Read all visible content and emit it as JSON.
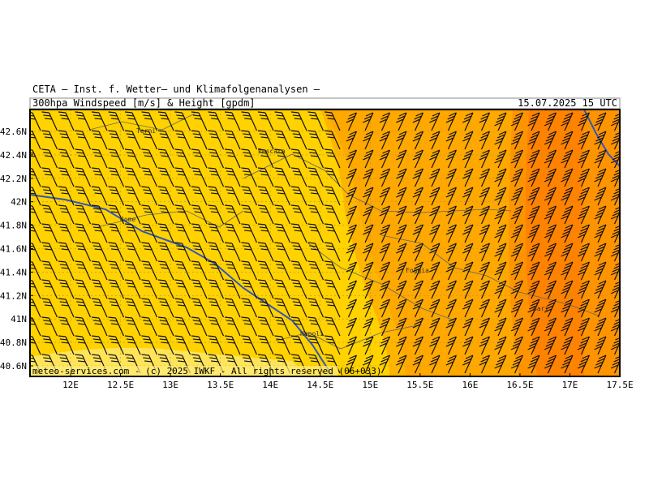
{
  "header": {
    "institute": "CETA — Inst. f. Wetter— und Klimafolgenanalysen —",
    "product": "300hpa Windspeed [m/s] & Height [gpdm]",
    "valid_time": "15.07.2025 15 UTC"
  },
  "map": {
    "lat_labels": [
      "42.6N",
      "42.4N",
      "42.2N",
      "42N",
      "41.8N",
      "41.6N",
      "41.4N",
      "41.2N",
      "41N",
      "40.8N",
      "40.6N"
    ],
    "lon_labels": [
      "12E",
      "12.5E",
      "13E",
      "13.5E",
      "14E",
      "14.5E",
      "15E",
      "15.5E",
      "16E",
      "16.5E",
      "17E",
      "17.5E"
    ],
    "cities": [
      "Terni",
      "Pescara",
      "Rome",
      "Foggia",
      "Bari",
      "Napoli"
    ],
    "footer": "meteo-services.com - (c) 2025 IWKF - All rights reserved (06+033)"
  }
}
